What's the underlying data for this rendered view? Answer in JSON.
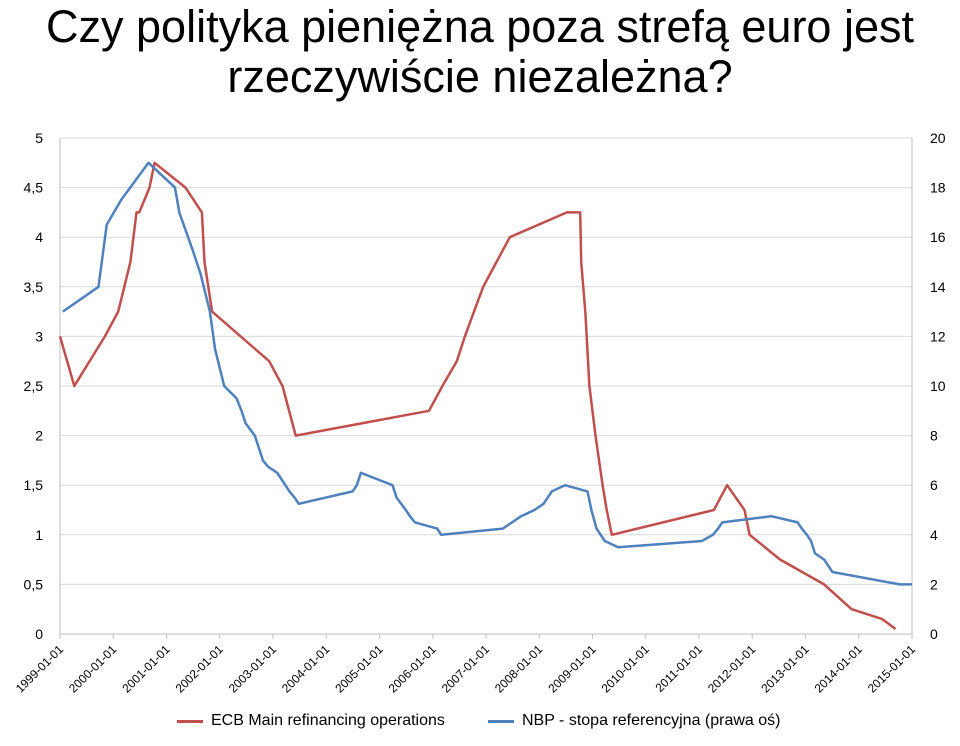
{
  "chart_data": {
    "type": "line",
    "title": "Czy polityka pieniężna poza strefą euro jest rzeczywiście niezależna?",
    "title_lines": [
      "Czy polityka pieniężna poza strefą euro jest",
      "rzeczywiście niezależna?"
    ],
    "x_ticks": [
      "1999-01-01",
      "2000-01-01",
      "2001-01-01",
      "2002-01-01",
      "2003-01-01",
      "2004-01-01",
      "2005-01-01",
      "2006-01-01",
      "2007-01-01",
      "2008-01-01",
      "2009-01-01",
      "2010-01-01",
      "2011-01-01",
      "2012-01-01",
      "2013-01-01",
      "2014-01-01",
      "2015-01-01"
    ],
    "xlim": [
      "1999-01-01",
      "2015-01-01"
    ],
    "y_left": {
      "ticks": [
        "0",
        "0,5",
        "1",
        "1,5",
        "2",
        "2,5",
        "3",
        "3,5",
        "4",
        "4,5",
        "5"
      ],
      "ylim": [
        0,
        5
      ]
    },
    "y_right": {
      "ticks": [
        "0",
        "2",
        "4",
        "6",
        "8",
        "10",
        "12",
        "14",
        "16",
        "18",
        "20"
      ],
      "ylim": [
        0,
        20
      ]
    },
    "grid": "horizontal",
    "legend_position": "bottom",
    "series": [
      {
        "name": "ECB Main refinancing operations",
        "axis": "left",
        "color": "#C0504D",
        "points": [
          [
            "1999-01-01",
            3.0
          ],
          [
            "1999-04-09",
            2.5
          ],
          [
            "1999-11-05",
            3.0
          ],
          [
            "2000-02-04",
            3.25
          ],
          [
            "2000-03-17",
            3.5
          ],
          [
            "2000-04-28",
            3.75
          ],
          [
            "2000-06-09",
            4.25
          ],
          [
            "2000-06-28",
            4.25
          ],
          [
            "2000-09-06",
            4.5
          ],
          [
            "2000-10-11",
            4.75
          ],
          [
            "2001-05-11",
            4.5
          ],
          [
            "2001-08-31",
            4.25
          ],
          [
            "2001-09-18",
            3.75
          ],
          [
            "2001-11-09",
            3.25
          ],
          [
            "2002-12-06",
            2.75
          ],
          [
            "2003-03-07",
            2.5
          ],
          [
            "2003-06-06",
            2.0
          ],
          [
            "2005-12-06",
            2.25
          ],
          [
            "2006-03-08",
            2.5
          ],
          [
            "2006-06-15",
            2.75
          ],
          [
            "2006-08-09",
            3.0
          ],
          [
            "2006-10-11",
            3.25
          ],
          [
            "2006-12-13",
            3.5
          ],
          [
            "2007-03-14",
            3.75
          ],
          [
            "2007-06-13",
            4.0
          ],
          [
            "2008-07-09",
            4.25
          ],
          [
            "2008-10-08",
            4.25
          ],
          [
            "2008-10-15",
            3.75
          ],
          [
            "2008-11-12",
            3.25
          ],
          [
            "2008-12-10",
            2.5
          ],
          [
            "2009-01-21",
            2.0
          ],
          [
            "2009-03-11",
            1.5
          ],
          [
            "2009-04-08",
            1.25
          ],
          [
            "2009-05-13",
            1.0
          ],
          [
            "2011-04-13",
            1.25
          ],
          [
            "2011-07-13",
            1.5
          ],
          [
            "2011-11-09",
            1.25
          ],
          [
            "2011-12-14",
            1.0
          ],
          [
            "2012-07-11",
            0.75
          ],
          [
            "2013-05-08",
            0.5
          ],
          [
            "2013-11-13",
            0.25
          ],
          [
            "2014-06-11",
            0.15
          ],
          [
            "2014-09-10",
            0.05
          ]
        ]
      },
      {
        "name": "NBP - stopa referencyjna (prawa oś)",
        "axis": "right",
        "color": "#4F81BD",
        "points": [
          [
            "1999-01-20",
            13.0
          ],
          [
            "1999-09-22",
            14.0
          ],
          [
            "1999-11-17",
            16.5
          ],
          [
            "2000-02-24",
            17.5
          ],
          [
            "2000-08-30",
            19.0
          ],
          [
            "2001-02-28",
            18.0
          ],
          [
            "2001-03-29",
            17.0
          ],
          [
            "2001-06-28",
            15.5
          ],
          [
            "2001-08-23",
            14.5
          ],
          [
            "2001-10-25",
            13.0
          ],
          [
            "2001-11-29",
            11.5
          ],
          [
            "2002-01-31",
            10.0
          ],
          [
            "2002-04-26",
            9.5
          ],
          [
            "2002-05-30",
            9.0
          ],
          [
            "2002-06-27",
            8.5
          ],
          [
            "2002-08-29",
            8.0
          ],
          [
            "2002-09-26",
            7.5
          ],
          [
            "2002-10-24",
            7.0
          ],
          [
            "2002-11-28",
            6.75
          ],
          [
            "2003-01-30",
            6.5
          ],
          [
            "2003-02-27",
            6.25
          ],
          [
            "2003-03-27",
            6.0
          ],
          [
            "2003-04-24",
            5.75
          ],
          [
            "2003-05-29",
            5.5
          ],
          [
            "2003-06-26",
            5.25
          ],
          [
            "2004-06-30",
            5.75
          ],
          [
            "2004-07-29",
            6.0
          ],
          [
            "2004-08-26",
            6.5
          ],
          [
            "2005-03-31",
            6.0
          ],
          [
            "2005-04-28",
            5.5
          ],
          [
            "2005-06-30",
            5.0
          ],
          [
            "2005-07-28",
            4.75
          ],
          [
            "2005-08-31",
            4.5
          ],
          [
            "2006-01-31",
            4.25
          ],
          [
            "2006-02-28",
            4.0
          ],
          [
            "2007-04-26",
            4.25
          ],
          [
            "2007-06-28",
            4.5
          ],
          [
            "2007-08-30",
            4.75
          ],
          [
            "2007-11-29",
            5.0
          ],
          [
            "2008-01-31",
            5.25
          ],
          [
            "2008-02-28",
            5.5
          ],
          [
            "2008-03-27",
            5.75
          ],
          [
            "2008-06-26",
            6.0
          ],
          [
            "2008-11-27",
            5.75
          ],
          [
            "2008-12-24",
            5.0
          ],
          [
            "2009-01-28",
            4.25
          ],
          [
            "2009-02-26",
            4.0
          ],
          [
            "2009-03-26",
            3.75
          ],
          [
            "2009-06-25",
            3.5
          ],
          [
            "2011-01-20",
            3.75
          ],
          [
            "2011-04-06",
            4.0
          ],
          [
            "2011-05-12",
            4.25
          ],
          [
            "2011-06-09",
            4.5
          ],
          [
            "2012-05-10",
            4.75
          ],
          [
            "2012-11-08",
            4.5
          ],
          [
            "2012-12-06",
            4.25
          ],
          [
            "2013-01-10",
            4.0
          ],
          [
            "2013-02-07",
            3.75
          ],
          [
            "2013-03-07",
            3.25
          ],
          [
            "2013-05-09",
            3.0
          ],
          [
            "2013-06-06",
            2.75
          ],
          [
            "2013-07-04",
            2.5
          ],
          [
            "2014-10-09",
            2.0
          ],
          [
            "2015-01-01",
            2.0
          ]
        ]
      }
    ]
  }
}
